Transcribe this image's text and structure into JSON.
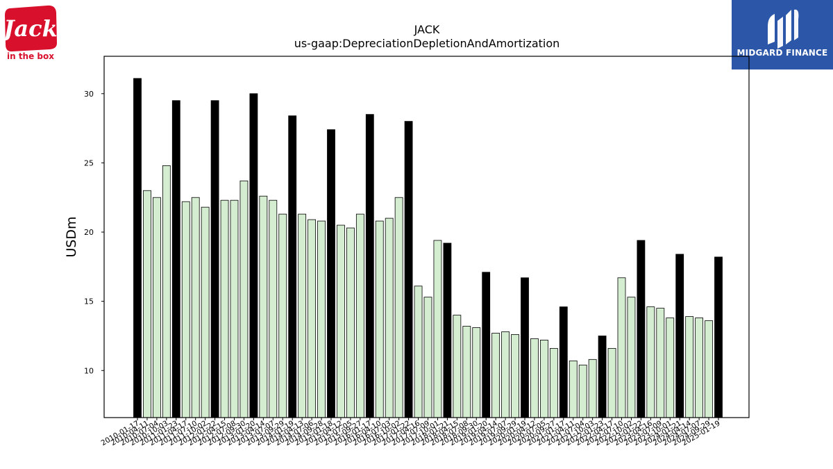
{
  "logos": {
    "left": {
      "brand": "Jack in the box",
      "icon": "jack-in-the-box-logo"
    },
    "right": {
      "brand_text": "MIDGARD FINANCE",
      "icon": "midgard-finance-logo"
    }
  },
  "colors": {
    "annual_bar": "#000000",
    "quarterly_bar": "#d4ecd0",
    "bar_edge": "#000000",
    "jack_red": "#d8102c",
    "midgard_blue": "#2c56a8"
  },
  "chart_data": {
    "type": "bar",
    "title": "JACK",
    "subtitle": "us-gaap:DepreciationDepletionAndAmortization",
    "xlabel": "",
    "ylabel": "USDm",
    "ylim": [
      6.6,
      32.7
    ],
    "yticks": [
      10,
      15,
      20,
      25,
      30
    ],
    "grid": false,
    "legend": "none",
    "categories": [
      "2010-01-17",
      "2010-04-11",
      "2010-07-04",
      "2010-10-03",
      "2011-01-23",
      "2011-04-17",
      "2011-07-10",
      "2011-10-02",
      "2012-01-22",
      "2012-04-15",
      "2012-07-08",
      "2012-09-30",
      "2013-01-20",
      "2013-04-14",
      "2013-07-07",
      "2013-09-29",
      "2014-01-19",
      "2014-04-13",
      "2014-07-06",
      "2014-09-28",
      "2015-01-18",
      "2015-04-12",
      "2015-07-05",
      "2015-09-27",
      "2016-01-17",
      "2016-04-10",
      "2016-07-03",
      "2016-10-02",
      "2017-01-22",
      "2017-04-16",
      "2017-07-09",
      "2017-10-01",
      "2018-01-21",
      "2018-04-15",
      "2018-07-08",
      "2018-09-30",
      "2019-01-20",
      "2019-04-14",
      "2019-07-07",
      "2019-09-29",
      "2020-01-19",
      "2020-04-12",
      "2020-07-05",
      "2020-09-27",
      "2021-01-17",
      "2021-04-11",
      "2021-07-04",
      "2021-10-03",
      "2022-01-23",
      "2022-04-17",
      "2022-07-10",
      "2022-10-02",
      "2023-01-22",
      "2023-04-16",
      "2023-07-09",
      "2023-10-01",
      "2024-01-21",
      "2024-04-14",
      "2024-07-07",
      "2024-09-29",
      "2025-01-19"
    ],
    "values": [
      31.1,
      23.0,
      22.5,
      24.8,
      29.5,
      22.2,
      22.5,
      21.8,
      29.5,
      22.3,
      22.3,
      23.7,
      30.0,
      22.6,
      22.3,
      21.3,
      28.4,
      21.3,
      20.9,
      20.8,
      27.4,
      20.5,
      20.3,
      21.3,
      28.5,
      20.8,
      21.0,
      22.5,
      28.0,
      16.1,
      15.3,
      19.4,
      19.2,
      14.0,
      13.2,
      13.1,
      17.1,
      12.7,
      12.8,
      12.6,
      16.7,
      12.3,
      12.2,
      11.6,
      14.6,
      10.7,
      10.4,
      10.8,
      12.5,
      11.6,
      16.7,
      15.3,
      19.4,
      14.6,
      14.5,
      13.8,
      18.4,
      13.9,
      13.8,
      13.6,
      18.2
    ],
    "annual_flags": [
      1,
      0,
      0,
      0,
      1,
      0,
      0,
      0,
      1,
      0,
      0,
      0,
      1,
      0,
      0,
      0,
      1,
      0,
      0,
      0,
      1,
      0,
      0,
      0,
      1,
      0,
      0,
      0,
      1,
      0,
      0,
      0,
      1,
      0,
      0,
      0,
      1,
      0,
      0,
      0,
      1,
      0,
      0,
      0,
      1,
      0,
      0,
      0,
      1,
      0,
      0,
      0,
      1,
      0,
      0,
      0,
      1,
      0,
      0,
      0,
      1
    ]
  }
}
